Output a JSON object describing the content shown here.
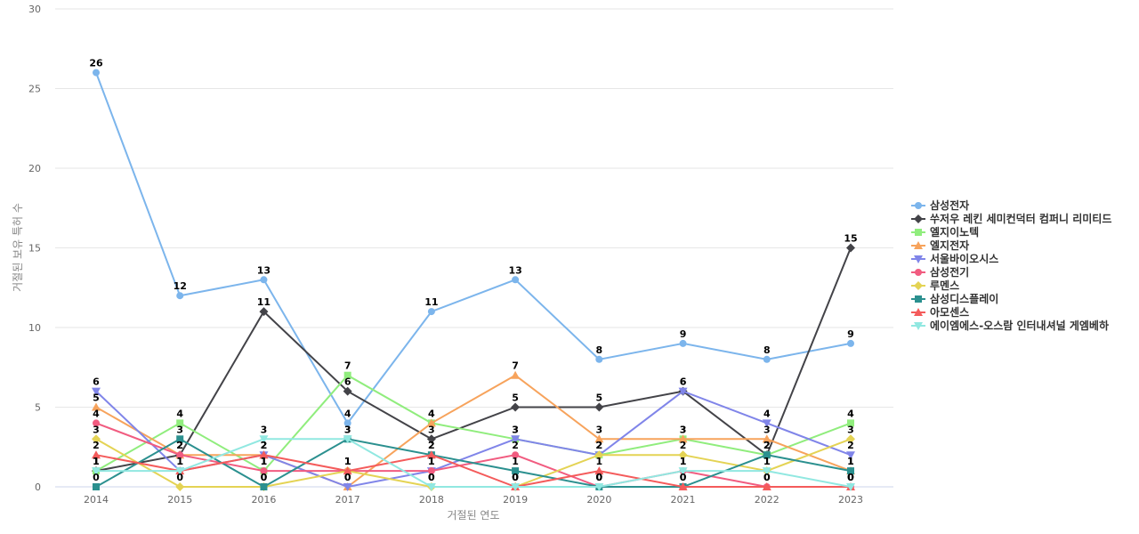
{
  "chart_data": {
    "type": "line",
    "title": "",
    "xlabel": "거절된 연도",
    "ylabel": "거절된 보유 특허 수",
    "x": [
      "2014",
      "2015",
      "2016",
      "2017",
      "2018",
      "2019",
      "2020",
      "2021",
      "2022",
      "2023"
    ],
    "ylim": [
      0,
      30
    ],
    "yticks": [
      0,
      5,
      10,
      15,
      20,
      25,
      30
    ],
    "grid": true,
    "legend_position": "right",
    "series": [
      {
        "name": "삼성전자",
        "color": "#7cb5ec",
        "marker": "circle",
        "values": [
          26,
          12,
          13,
          4,
          11,
          13,
          8,
          9,
          8,
          9
        ]
      },
      {
        "name": "쑤저우 레킨 세미컨덕터 컴퍼니 리미티드",
        "color": "#434348",
        "marker": "diamond",
        "values": [
          1,
          2,
          11,
          6,
          3,
          5,
          5,
          6,
          2,
          15
        ]
      },
      {
        "name": "엘지이노텍",
        "color": "#90ed7d",
        "marker": "square",
        "values": [
          1,
          4,
          1,
          7,
          4,
          3,
          2,
          3,
          2,
          4
        ]
      },
      {
        "name": "엘지전자",
        "color": "#f7a35c",
        "marker": "triangle",
        "values": [
          5,
          2,
          2,
          0,
          4,
          7,
          3,
          3,
          3,
          1
        ]
      },
      {
        "name": "서울바이오시스",
        "color": "#8085e9",
        "marker": "triangle-down",
        "values": [
          6,
          1,
          2,
          0,
          1,
          3,
          2,
          6,
          4,
          2
        ]
      },
      {
        "name": "삼성전기",
        "color": "#f15c80",
        "marker": "circle",
        "values": [
          4,
          2,
          1,
          1,
          1,
          2,
          0,
          1,
          0,
          0
        ]
      },
      {
        "name": "루멘스",
        "color": "#e4d354",
        "marker": "diamond",
        "values": [
          3,
          0,
          0,
          1,
          0,
          0,
          2,
          2,
          1,
          3
        ]
      },
      {
        "name": "삼성디스플레이",
        "color": "#2b908f",
        "marker": "square",
        "values": [
          0,
          3,
          0,
          3,
          2,
          1,
          0,
          0,
          2,
          1
        ]
      },
      {
        "name": "아모센스",
        "color": "#f45b5b",
        "marker": "triangle",
        "values": [
          2,
          1,
          2,
          1,
          2,
          0,
          1,
          0,
          0,
          0
        ]
      },
      {
        "name": "에이엠에스-오스람 인터내셔널 게엠베하",
        "color": "#91e8e1",
        "marker": "triangle-down",
        "values": [
          1,
          1,
          3,
          3,
          0,
          0,
          0,
          1,
          1,
          0
        ]
      }
    ]
  }
}
